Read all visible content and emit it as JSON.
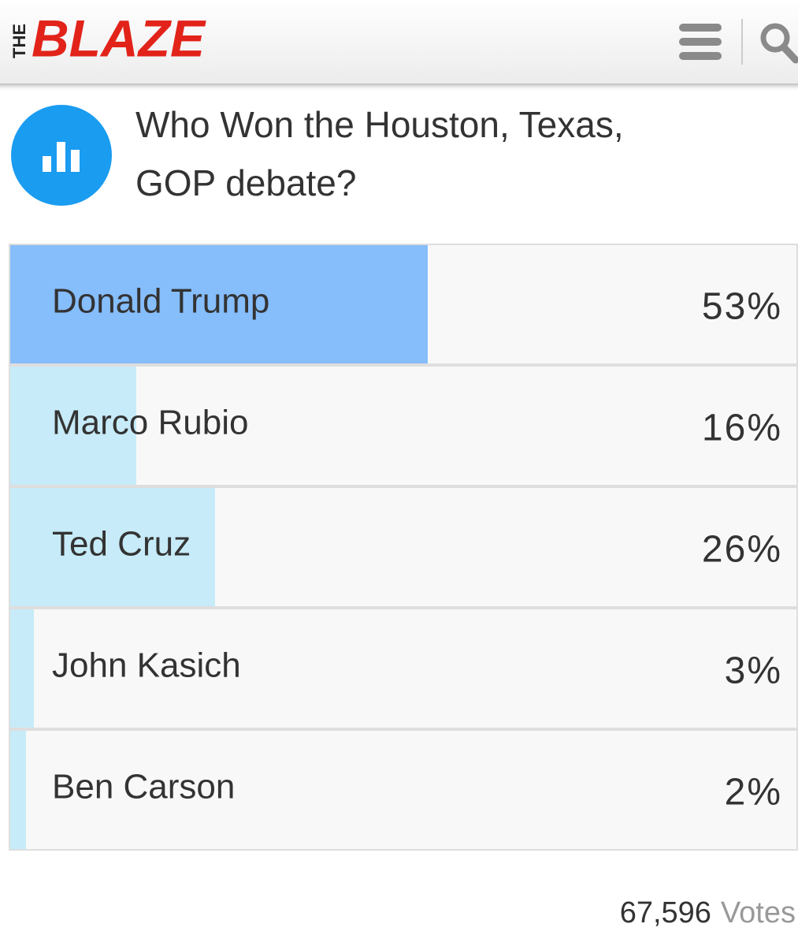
{
  "header": {
    "logo_prefix": "THE",
    "logo": "BLAZE"
  },
  "poll": {
    "question_lines": [
      "Who Won the Houston, Texas,",
      "GOP debate?"
    ],
    "bar_color": "#c7ebf8",
    "leader_color": "#86bdfb",
    "options": [
      {
        "name": "Donald Trump",
        "value": 53,
        "value_label": "53%"
      },
      {
        "name": "Marco Rubio",
        "value": 16,
        "value_label": "16%"
      },
      {
        "name": "Ted Cruz",
        "value": 26,
        "value_label": "26%"
      },
      {
        "name": "John Kasich",
        "value": 3,
        "value_label": "3%"
      },
      {
        "name": "Ben Carson",
        "value": 2,
        "value_label": "2%"
      }
    ],
    "votes_count": "67,596",
    "votes_unit": "Votes"
  }
}
